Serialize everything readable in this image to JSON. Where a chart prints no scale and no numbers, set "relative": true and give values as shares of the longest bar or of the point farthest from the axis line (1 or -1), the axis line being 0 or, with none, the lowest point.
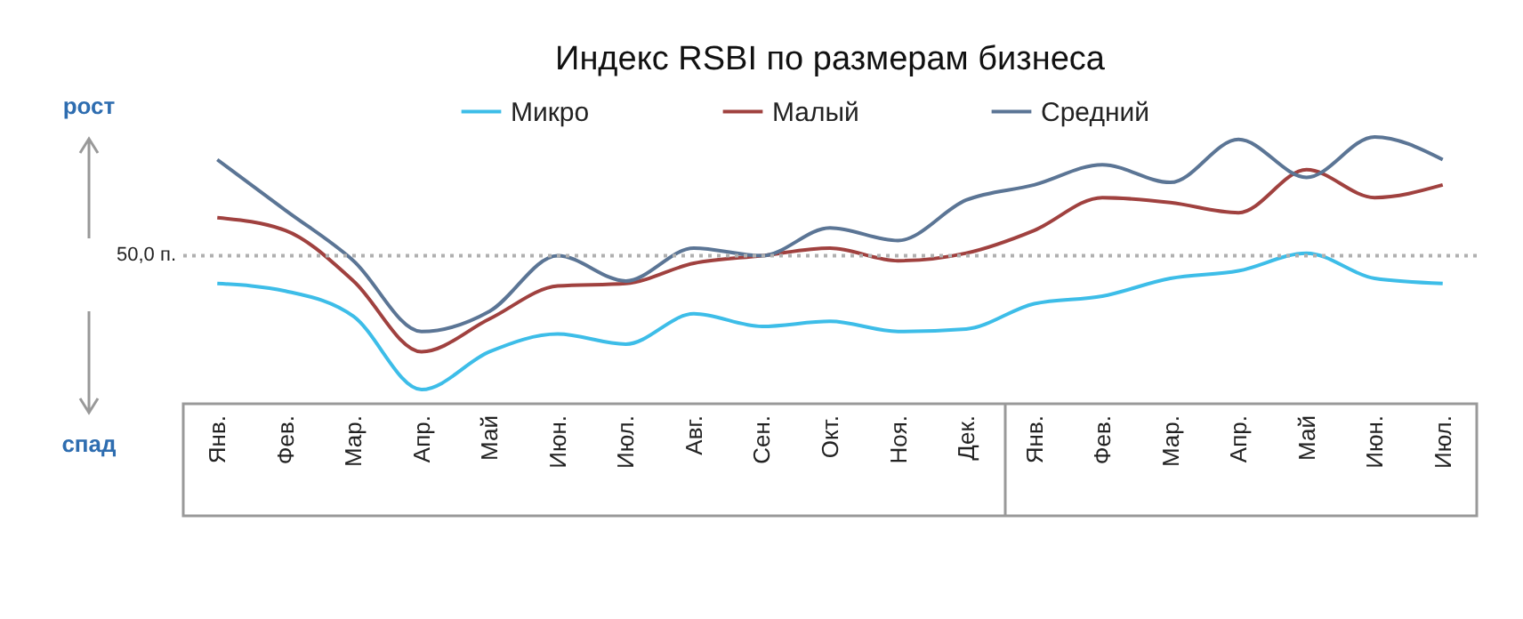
{
  "chart_data": {
    "type": "line",
    "title": "Индекс RSBI по размерам бизнеса",
    "relative": true,
    "categories": [
      "Янв.",
      "Фев.",
      "Мар.",
      "Апр.",
      "Май",
      "Июн.",
      "Июл.",
      "Авг.",
      "Сен.",
      "Окт.",
      "Ноя.",
      "Дек.",
      "Янв.",
      "Фев.",
      "Мар.",
      "Апр.",
      "Май",
      "Июн.",
      "Июл."
    ],
    "series": [
      {
        "name": "Микро",
        "color": "#3dbde8",
        "values": [
          0.42,
          0.39,
          0.29,
          0,
          0.15,
          0.22,
          0.18,
          0.3,
          0.25,
          0.27,
          0.23,
          0.24,
          0.34,
          0.37,
          0.44,
          0.47,
          0.54,
          0.44,
          0.42
        ]
      },
      {
        "name": "Малый",
        "color": "#a0413f",
        "values": [
          0.68,
          0.63,
          0.43,
          0.15,
          0.28,
          0.41,
          0.42,
          0.5,
          0.53,
          0.56,
          0.51,
          0.54,
          0.63,
          0.76,
          0.74,
          0.7,
          0.87,
          0.76,
          0.81
        ]
      },
      {
        "name": "Средний",
        "color": "#5b7595",
        "values": [
          0.91,
          0.71,
          0.51,
          0.23,
          0.31,
          0.53,
          0.43,
          0.56,
          0.53,
          0.64,
          0.59,
          0.75,
          0.81,
          0.89,
          0.82,
          0.99,
          0.84,
          1,
          0.91
        ]
      }
    ],
    "ref_lines": [
      {
        "axis": "y",
        "value": 0.53,
        "label": "50,0 п.",
        "color": "#b0b0b0",
        "line_style": "dotted"
      }
    ],
    "annotations": [
      "рост",
      "спад"
    ],
    "legend": "top",
    "marker": "none",
    "line_style": "solid",
    "grid": false
  }
}
